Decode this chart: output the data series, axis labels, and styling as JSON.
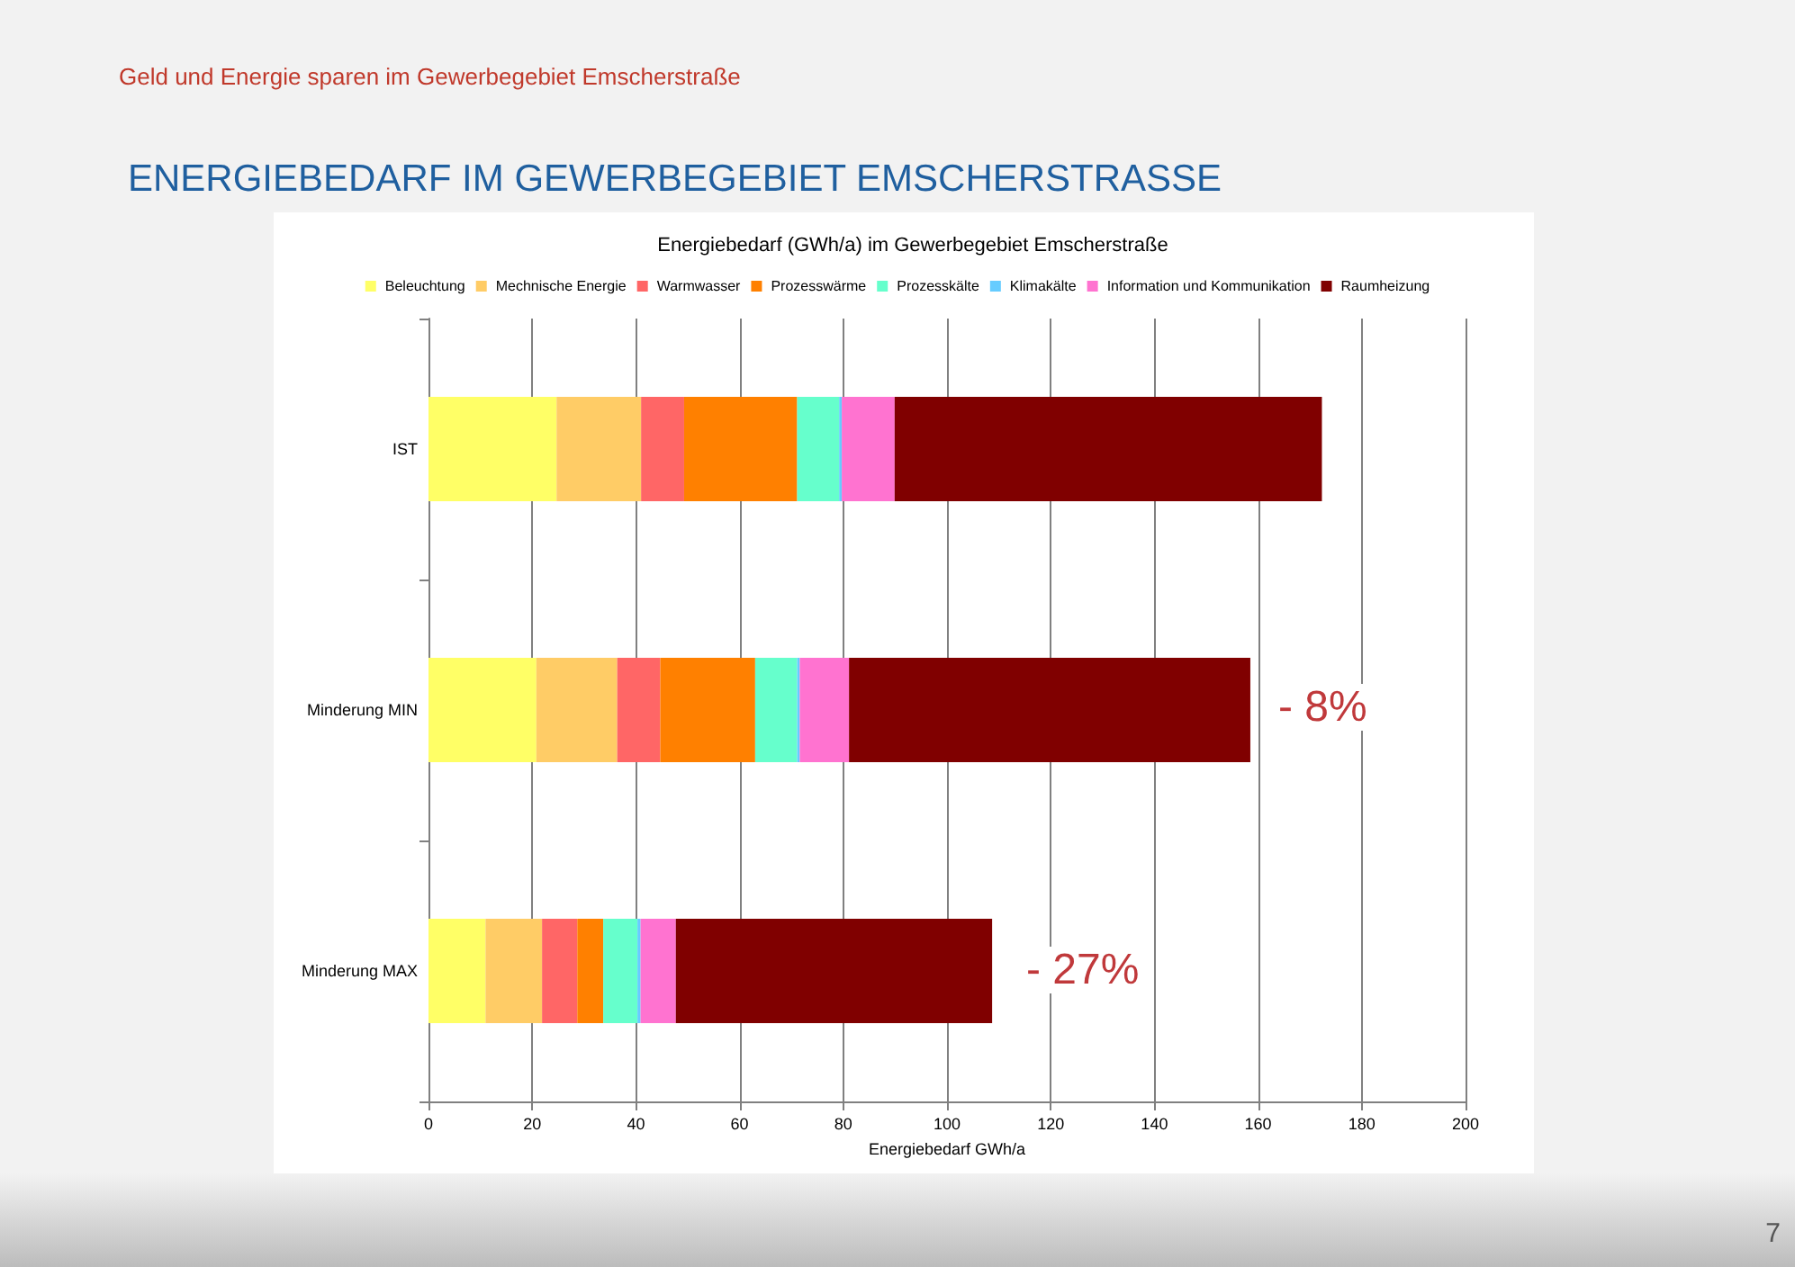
{
  "chart_data": {
    "type": "bar",
    "orientation": "horizontal",
    "stacked": true,
    "title": "ENERGIEBEDARF IM GEWERBEGEBIET EMSCHERSTRASSE",
    "subtitle": "Energiebedarf (GWh/a) im Gewerbegebiet Emscherstraße",
    "xlabel": "Energiebedarf GWh/a",
    "categories": [
      "IST",
      "Minderung MIN",
      "Minderung MAX"
    ],
    "series": [
      {
        "name": "Beleuchtung",
        "color": "#ffff66",
        "values": [
          24.7,
          20.8,
          11.0
        ]
      },
      {
        "name": "Mechnische Energie",
        "color": "#ffcc66",
        "values": [
          16.3,
          15.6,
          10.9
        ]
      },
      {
        "name": "Warmwasser",
        "color": "#ff6666",
        "values": [
          8.3,
          8.3,
          6.8
        ]
      },
      {
        "name": "Prozesswärme",
        "color": "#ff8000",
        "values": [
          21.8,
          18.3,
          5.0
        ]
      },
      {
        "name": "Prozesskälte",
        "color": "#66ffcc",
        "values": [
          8.1,
          8.1,
          6.6
        ]
      },
      {
        "name": "Klimakälte",
        "color": "#66ccff",
        "values": [
          0.5,
          0.5,
          0.6
        ]
      },
      {
        "name": "Information und Kommunikation",
        "color": "#ff73d0",
        "values": [
          10.2,
          9.5,
          6.8
        ]
      },
      {
        "name": "Raumheizung",
        "color": "#800000",
        "values": [
          82.4,
          77.4,
          61.0
        ]
      }
    ],
    "xlim": [
      0,
      200
    ],
    "xticks": [
      0,
      20,
      40,
      60,
      80,
      100,
      120,
      140,
      160,
      180,
      200
    ],
    "grid": "x",
    "legend": "top",
    "annotations": [
      "- 8%",
      "- 27%",
      "Geld und Energie sparen im Gewerbegebiet Emscherstraße",
      "7"
    ]
  }
}
